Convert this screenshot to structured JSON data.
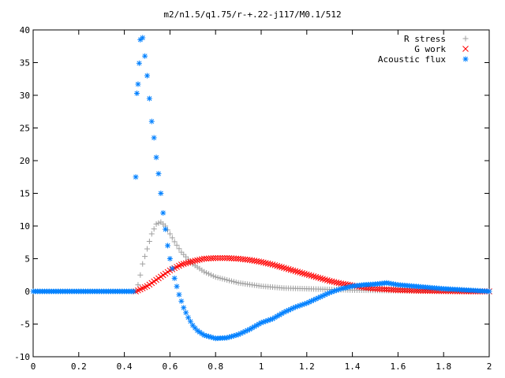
{
  "chart_data": {
    "type": "scatter",
    "title": "m2/n1.5/q1.75/r-+.22-j117/M0.1/512",
    "xlabel": "",
    "ylabel": "",
    "xlim": [
      0,
      2
    ],
    "ylim": [
      -10,
      40
    ],
    "x_ticks": [
      "0",
      "0.2",
      "0.4",
      "0.6",
      "0.8",
      "1",
      "1.2",
      "1.4",
      "1.6",
      "1.8",
      "2"
    ],
    "y_ticks": [
      "-10",
      "-5",
      "0",
      "5",
      "10",
      "15",
      "20",
      "25",
      "30",
      "35",
      "40"
    ],
    "grid": false,
    "legend_position": "top-right",
    "series": [
      {
        "name": "R stress",
        "marker": "+",
        "color": "#a0a0a0",
        "points": [
          [
            0.0,
            0
          ],
          [
            0.1,
            0
          ],
          [
            0.2,
            0
          ],
          [
            0.3,
            0
          ],
          [
            0.4,
            0
          ],
          [
            0.45,
            0
          ],
          [
            0.46,
            1.0
          ],
          [
            0.47,
            2.5
          ],
          [
            0.48,
            4.2
          ],
          [
            0.5,
            6.5
          ],
          [
            0.52,
            8.8
          ],
          [
            0.54,
            10.3
          ],
          [
            0.56,
            10.6
          ],
          [
            0.58,
            10.0
          ],
          [
            0.6,
            8.8
          ],
          [
            0.62,
            7.6
          ],
          [
            0.65,
            6.0
          ],
          [
            0.7,
            4.2
          ],
          [
            0.75,
            3.0
          ],
          [
            0.8,
            2.2
          ],
          [
            0.9,
            1.3
          ],
          [
            1.0,
            0.8
          ],
          [
            1.1,
            0.5
          ],
          [
            1.2,
            0.4
          ],
          [
            1.3,
            0.3
          ],
          [
            1.4,
            0.2
          ],
          [
            1.5,
            0.15
          ],
          [
            1.6,
            0.1
          ],
          [
            1.7,
            0.05
          ],
          [
            1.8,
            0.0
          ],
          [
            1.9,
            0.0
          ],
          [
            2.0,
            0.0
          ]
        ]
      },
      {
        "name": "G work",
        "marker": "x",
        "color": "#ff0000",
        "points": [
          [
            0.45,
            0.0
          ],
          [
            0.5,
            0.8
          ],
          [
            0.55,
            2.0
          ],
          [
            0.6,
            3.2
          ],
          [
            0.65,
            4.1
          ],
          [
            0.7,
            4.6
          ],
          [
            0.75,
            5.0
          ],
          [
            0.8,
            5.1
          ],
          [
            0.85,
            5.1
          ],
          [
            0.9,
            5.0
          ],
          [
            0.95,
            4.8
          ],
          [
            1.0,
            4.5
          ],
          [
            1.05,
            4.1
          ],
          [
            1.1,
            3.6
          ],
          [
            1.15,
            3.1
          ],
          [
            1.2,
            2.6
          ],
          [
            1.25,
            2.1
          ],
          [
            1.3,
            1.6
          ],
          [
            1.35,
            1.2
          ],
          [
            1.4,
            0.9
          ],
          [
            1.45,
            0.6
          ],
          [
            1.5,
            0.4
          ],
          [
            1.6,
            0.2
          ],
          [
            1.7,
            0.1
          ],
          [
            1.8,
            0.05
          ],
          [
            1.9,
            0.0
          ],
          [
            2.0,
            0.0
          ]
        ]
      },
      {
        "name": "Acoustic flux",
        "marker": "*",
        "color": "#0080ff",
        "points": [
          [
            0.0,
            0
          ],
          [
            0.1,
            0
          ],
          [
            0.2,
            0
          ],
          [
            0.3,
            0
          ],
          [
            0.4,
            0
          ],
          [
            0.44,
            0
          ],
          [
            0.45,
            17.5
          ],
          [
            0.455,
            30.3
          ],
          [
            0.46,
            31.7
          ],
          [
            0.465,
            34.9
          ],
          [
            0.47,
            38.5
          ],
          [
            0.48,
            38.8
          ],
          [
            0.49,
            36.0
          ],
          [
            0.5,
            33.0
          ],
          [
            0.51,
            29.5
          ],
          [
            0.52,
            26.0
          ],
          [
            0.53,
            23.5
          ],
          [
            0.54,
            20.5
          ],
          [
            0.55,
            18.0
          ],
          [
            0.56,
            15.0
          ],
          [
            0.57,
            12.0
          ],
          [
            0.58,
            9.5
          ],
          [
            0.59,
            7.0
          ],
          [
            0.6,
            5.0
          ],
          [
            0.62,
            2.0
          ],
          [
            0.64,
            -0.5
          ],
          [
            0.66,
            -2.5
          ],
          [
            0.68,
            -4.0
          ],
          [
            0.7,
            -5.2
          ],
          [
            0.72,
            -6.0
          ],
          [
            0.75,
            -6.7
          ],
          [
            0.8,
            -7.2
          ],
          [
            0.85,
            -7.1
          ],
          [
            0.9,
            -6.6
          ],
          [
            0.95,
            -5.8
          ],
          [
            1.0,
            -4.8
          ],
          [
            1.05,
            -4.2
          ],
          [
            1.1,
            -3.2
          ],
          [
            1.15,
            -2.4
          ],
          [
            1.2,
            -1.8
          ],
          [
            1.25,
            -1.0
          ],
          [
            1.3,
            -0.2
          ],
          [
            1.35,
            0.4
          ],
          [
            1.4,
            0.8
          ],
          [
            1.45,
            1.0
          ],
          [
            1.5,
            1.1
          ],
          [
            1.55,
            1.3
          ],
          [
            1.6,
            1.0
          ],
          [
            1.7,
            0.7
          ],
          [
            1.8,
            0.4
          ],
          [
            1.9,
            0.2
          ],
          [
            2.0,
            0.0
          ]
        ]
      }
    ]
  }
}
